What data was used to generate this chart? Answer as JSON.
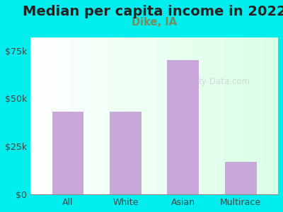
{
  "title": "Median per capita income in 2022",
  "subtitle": "Dike, IA",
  "categories": [
    "All",
    "White",
    "Asian",
    "Multirace"
  ],
  "values": [
    43000,
    43000,
    70000,
    17000
  ],
  "bar_color": "#C8A8D8",
  "title_color": "#222222",
  "subtitle_color": "#7A8A5A",
  "axis_label_color": "#444444",
  "background_outer": "#00EEEE",
  "ytick_labels": [
    "$0",
    "$25k",
    "$50k",
    "$75k"
  ],
  "ytick_values": [
    0,
    25000,
    50000,
    75000
  ],
  "ylim": [
    0,
    82000
  ],
  "watermark": "ty-Data.com",
  "title_fontsize": 14,
  "subtitle_fontsize": 10.5,
  "tick_fontsize": 9,
  "bar_width": 0.55
}
